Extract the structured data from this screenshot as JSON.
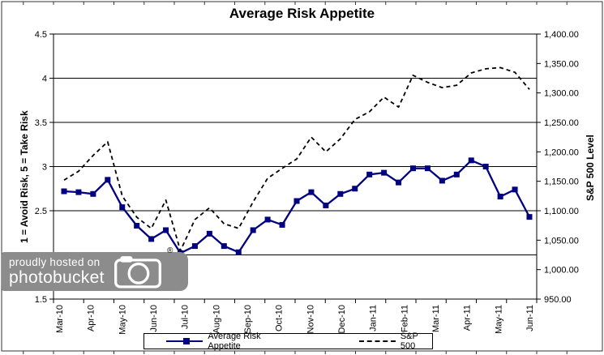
{
  "title": "Average Risk Appetite",
  "chart_data": {
    "type": "line",
    "title": "Average Risk Appetite",
    "grid": "horizontal",
    "legend_position": "bottom",
    "x_tick_labels": [
      "Mar-10",
      "Apr-10",
      "May-10",
      "Jun-10",
      "Jul-10",
      "Aug-10",
      "Sep-10",
      "Oct-10",
      "Nov-10",
      "Dec-10",
      "Jan-11",
      "Feb-11",
      "Mar-11",
      "Apr-11",
      "May-11",
      "Jun-11"
    ],
    "left_axis": {
      "label": "1 = Avoid Risk, 5 = Take Risk",
      "min": 1.5,
      "max": 4.5,
      "ticks": [
        "4.5",
        "4",
        "3.5",
        "3",
        "2.5",
        "2",
        "1.5"
      ]
    },
    "right_axis": {
      "label": "S&P 500 Level",
      "min": 950,
      "max": 1400,
      "ticks": [
        "1,400.00",
        "1,350.00",
        "1,300.00",
        "1,250.00",
        "1,200.00",
        "1,150.00",
        "1,100.00",
        "1,050.00",
        "1,000.00",
        "950.00"
      ]
    },
    "series": [
      {
        "name": "Average Risk Appetite",
        "axis": "left",
        "style": "solid",
        "marker": "square",
        "color": "#000080",
        "values": [
          2.72,
          2.71,
          2.69,
          2.85,
          2.54,
          2.33,
          2.18,
          2.28,
          2.02,
          2.1,
          2.24,
          2.1,
          2.03,
          2.28,
          2.4,
          2.34,
          2.61,
          2.71,
          2.56,
          2.69,
          2.75,
          2.91,
          2.93,
          2.82,
          2.98,
          2.98,
          2.84,
          2.91,
          3.07,
          3.0,
          2.66,
          2.74,
          2.43
        ]
      },
      {
        "name": "S&P 500",
        "axis": "right",
        "style": "dashed",
        "marker": "none",
        "color": "#000000",
        "values": [
          1152,
          1167,
          1194,
          1217,
          1125,
          1089,
          1070,
          1118,
          1032,
          1085,
          1105,
          1078,
          1070,
          1115,
          1155,
          1172,
          1188,
          1225,
          1200,
          1222,
          1255,
          1268,
          1293,
          1276,
          1330,
          1318,
          1309,
          1313,
          1334,
          1341,
          1343,
          1335,
          1306
        ]
      }
    ]
  },
  "watermark": {
    "line1": "proudly hosted on",
    "line2": "photobucket",
    "registered_mark": "®"
  },
  "colors": {
    "risk_appetite_line": "#000080",
    "sp500_line": "#000000",
    "gridline": "#000000",
    "watermark_bg": "#8c8c8c",
    "watermark_text": "#ffffff",
    "background": "#ffffff"
  }
}
